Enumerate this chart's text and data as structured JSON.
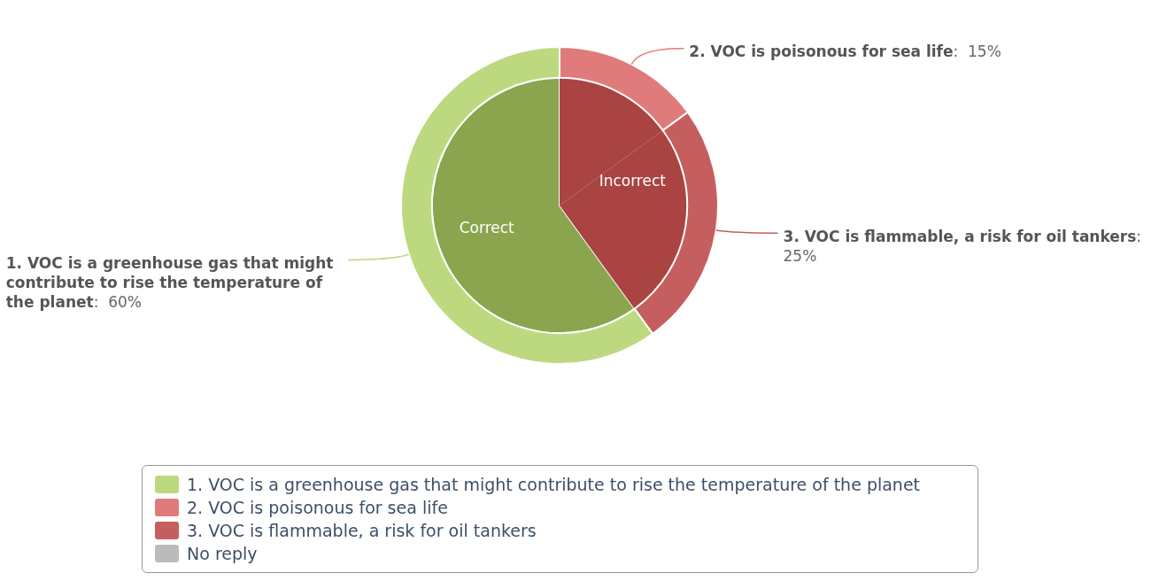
{
  "chart_data": {
    "type": "donut",
    "categories": [
      "1. VOC is a greenhouse gas that might contribute to rise the temperature of the planet",
      "2. VOC is poisonous for sea life",
      "3. VOC is flammable, a risk for oil tankers",
      "No reply"
    ],
    "values": [
      60,
      15,
      25,
      0
    ],
    "colors": [
      "#bcd97f",
      "#e07b7b",
      "#c55f5f",
      "#bbbbbb"
    ],
    "value_labels": [
      ":  60%",
      ":  15%",
      ":  25%",
      null
    ],
    "series": [
      {
        "type": "pie",
        "values": [
          60,
          15,
          25,
          0
        ],
        "colors": [
          "#8aa54e",
          "#a94442",
          "#a94442",
          "#bbbbbb"
        ]
      }
    ],
    "annotations": [
      "Correct",
      "Incorrect"
    ],
    "legend": "bottom"
  }
}
